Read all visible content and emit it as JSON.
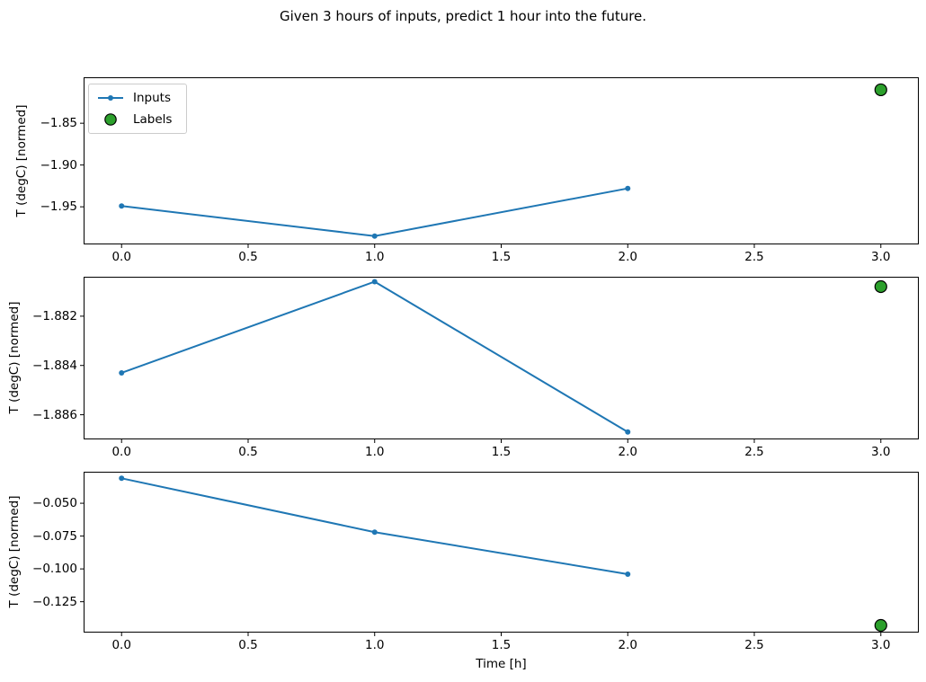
{
  "title": "Given 3 hours of inputs, predict 1 hour into the future.",
  "colors": {
    "inputs": "#1f77b4",
    "labels": "#2ca02c",
    "labels_edge": "#000000",
    "axis": "#000000"
  },
  "legend": {
    "position": "upper left",
    "entries": [
      {
        "label": "Inputs",
        "marker": "line-with-dot"
      },
      {
        "label": "Labels",
        "marker": "filled-circle"
      }
    ]
  },
  "chart_data": [
    {
      "type": "line",
      "title": "",
      "xlabel": "",
      "ylabel": "T (degC) [normed]",
      "xlim": [
        -0.15,
        3.15
      ],
      "ylim": [
        -1.995,
        -1.795
      ],
      "grid": false,
      "legend": true,
      "x_ticks": [
        {
          "value": 0.0,
          "label": "0.0"
        },
        {
          "value": 0.5,
          "label": "0.5"
        },
        {
          "value": 1.0,
          "label": "1.0"
        },
        {
          "value": 1.5,
          "label": "1.5"
        },
        {
          "value": 2.0,
          "label": "2.0"
        },
        {
          "value": 2.5,
          "label": "2.5"
        },
        {
          "value": 3.0,
          "label": "3.0"
        }
      ],
      "y_ticks": [
        {
          "value": -1.85,
          "label": "−1.85"
        },
        {
          "value": -1.9,
          "label": "−1.90"
        },
        {
          "value": -1.95,
          "label": "−1.95"
        }
      ],
      "series": [
        {
          "name": "Inputs",
          "type": "line",
          "color": "#1f77b4",
          "marker": "point",
          "x": [
            0,
            1,
            2
          ],
          "y": [
            -1.949,
            -1.985,
            -1.928
          ]
        },
        {
          "name": "Labels",
          "type": "scatter",
          "color": "#2ca02c",
          "edge_color": "#000000",
          "x": [
            3
          ],
          "y": [
            -1.81
          ]
        }
      ]
    },
    {
      "type": "line",
      "title": "",
      "xlabel": "",
      "ylabel": "T (degC) [normed]",
      "xlim": [
        -0.15,
        3.15
      ],
      "ylim": [
        -1.887,
        -1.8804
      ],
      "grid": false,
      "legend": false,
      "x_ticks": [
        {
          "value": 0.0,
          "label": "0.0"
        },
        {
          "value": 0.5,
          "label": "0.5"
        },
        {
          "value": 1.0,
          "label": "1.0"
        },
        {
          "value": 1.5,
          "label": "1.5"
        },
        {
          "value": 2.0,
          "label": "2.0"
        },
        {
          "value": 2.5,
          "label": "2.5"
        },
        {
          "value": 3.0,
          "label": "3.0"
        }
      ],
      "y_ticks": [
        {
          "value": -1.882,
          "label": "−1.882"
        },
        {
          "value": -1.884,
          "label": "−1.884"
        },
        {
          "value": -1.886,
          "label": "−1.886"
        }
      ],
      "series": [
        {
          "name": "Inputs",
          "type": "line",
          "color": "#1f77b4",
          "marker": "point",
          "x": [
            0,
            1,
            2
          ],
          "y": [
            -1.8843,
            -1.8806,
            -1.8867
          ]
        },
        {
          "name": "Labels",
          "type": "scatter",
          "color": "#2ca02c",
          "edge_color": "#000000",
          "x": [
            3
          ],
          "y": [
            -1.8808
          ]
        }
      ]
    },
    {
      "type": "line",
      "title": "",
      "xlabel": "Time [h]",
      "ylabel": "T (degC) [normed]",
      "xlim": [
        -0.15,
        3.15
      ],
      "ylim": [
        -0.1485,
        -0.026
      ],
      "grid": false,
      "legend": false,
      "x_ticks": [
        {
          "value": 0.0,
          "label": "0.0"
        },
        {
          "value": 0.5,
          "label": "0.5"
        },
        {
          "value": 1.0,
          "label": "1.0"
        },
        {
          "value": 1.5,
          "label": "1.5"
        },
        {
          "value": 2.0,
          "label": "2.0"
        },
        {
          "value": 2.5,
          "label": "2.5"
        },
        {
          "value": 3.0,
          "label": "3.0"
        }
      ],
      "y_ticks": [
        {
          "value": -0.05,
          "label": "−0.050"
        },
        {
          "value": -0.075,
          "label": "−0.075"
        },
        {
          "value": -0.1,
          "label": "−0.100"
        },
        {
          "value": -0.125,
          "label": "−0.125"
        }
      ],
      "series": [
        {
          "name": "Inputs",
          "type": "line",
          "color": "#1f77b4",
          "marker": "point",
          "x": [
            0,
            1,
            2
          ],
          "y": [
            -0.031,
            -0.072,
            -0.104
          ]
        },
        {
          "name": "Labels",
          "type": "scatter",
          "color": "#2ca02c",
          "edge_color": "#000000",
          "x": [
            3
          ],
          "y": [
            -0.143
          ]
        }
      ]
    }
  ]
}
